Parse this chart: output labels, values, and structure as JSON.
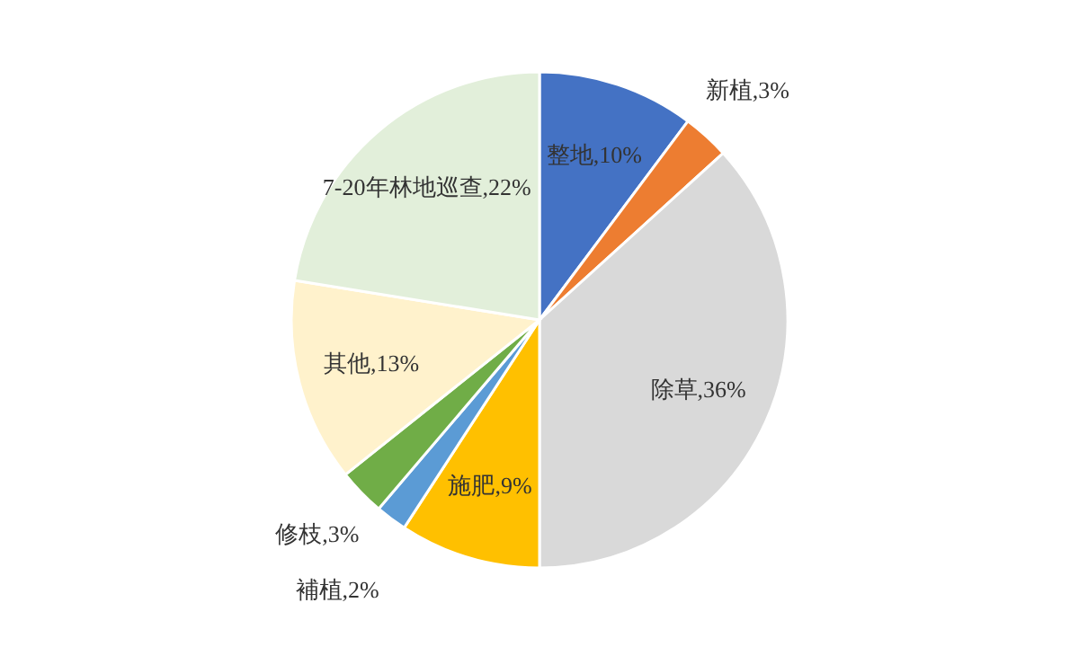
{
  "chart_data": {
    "type": "pie",
    "categories": [
      "整地",
      "新植",
      "除草",
      "施肥",
      "補植",
      "修枝",
      "其他",
      "7-20年林地巡查"
    ],
    "values": [
      10,
      3,
      36,
      9,
      2,
      3,
      13,
      22
    ],
    "value_labels": [
      "10%",
      "3%",
      "36%",
      "9%",
      "2%",
      "3%",
      "13%",
      "22%"
    ],
    "colors": [
      "#4472c4",
      "#ed7d31",
      "#d9d9d9",
      "#ffc000",
      "#5b9bd5",
      "#70ad47",
      "#fff2cc",
      "#e2efda"
    ]
  }
}
